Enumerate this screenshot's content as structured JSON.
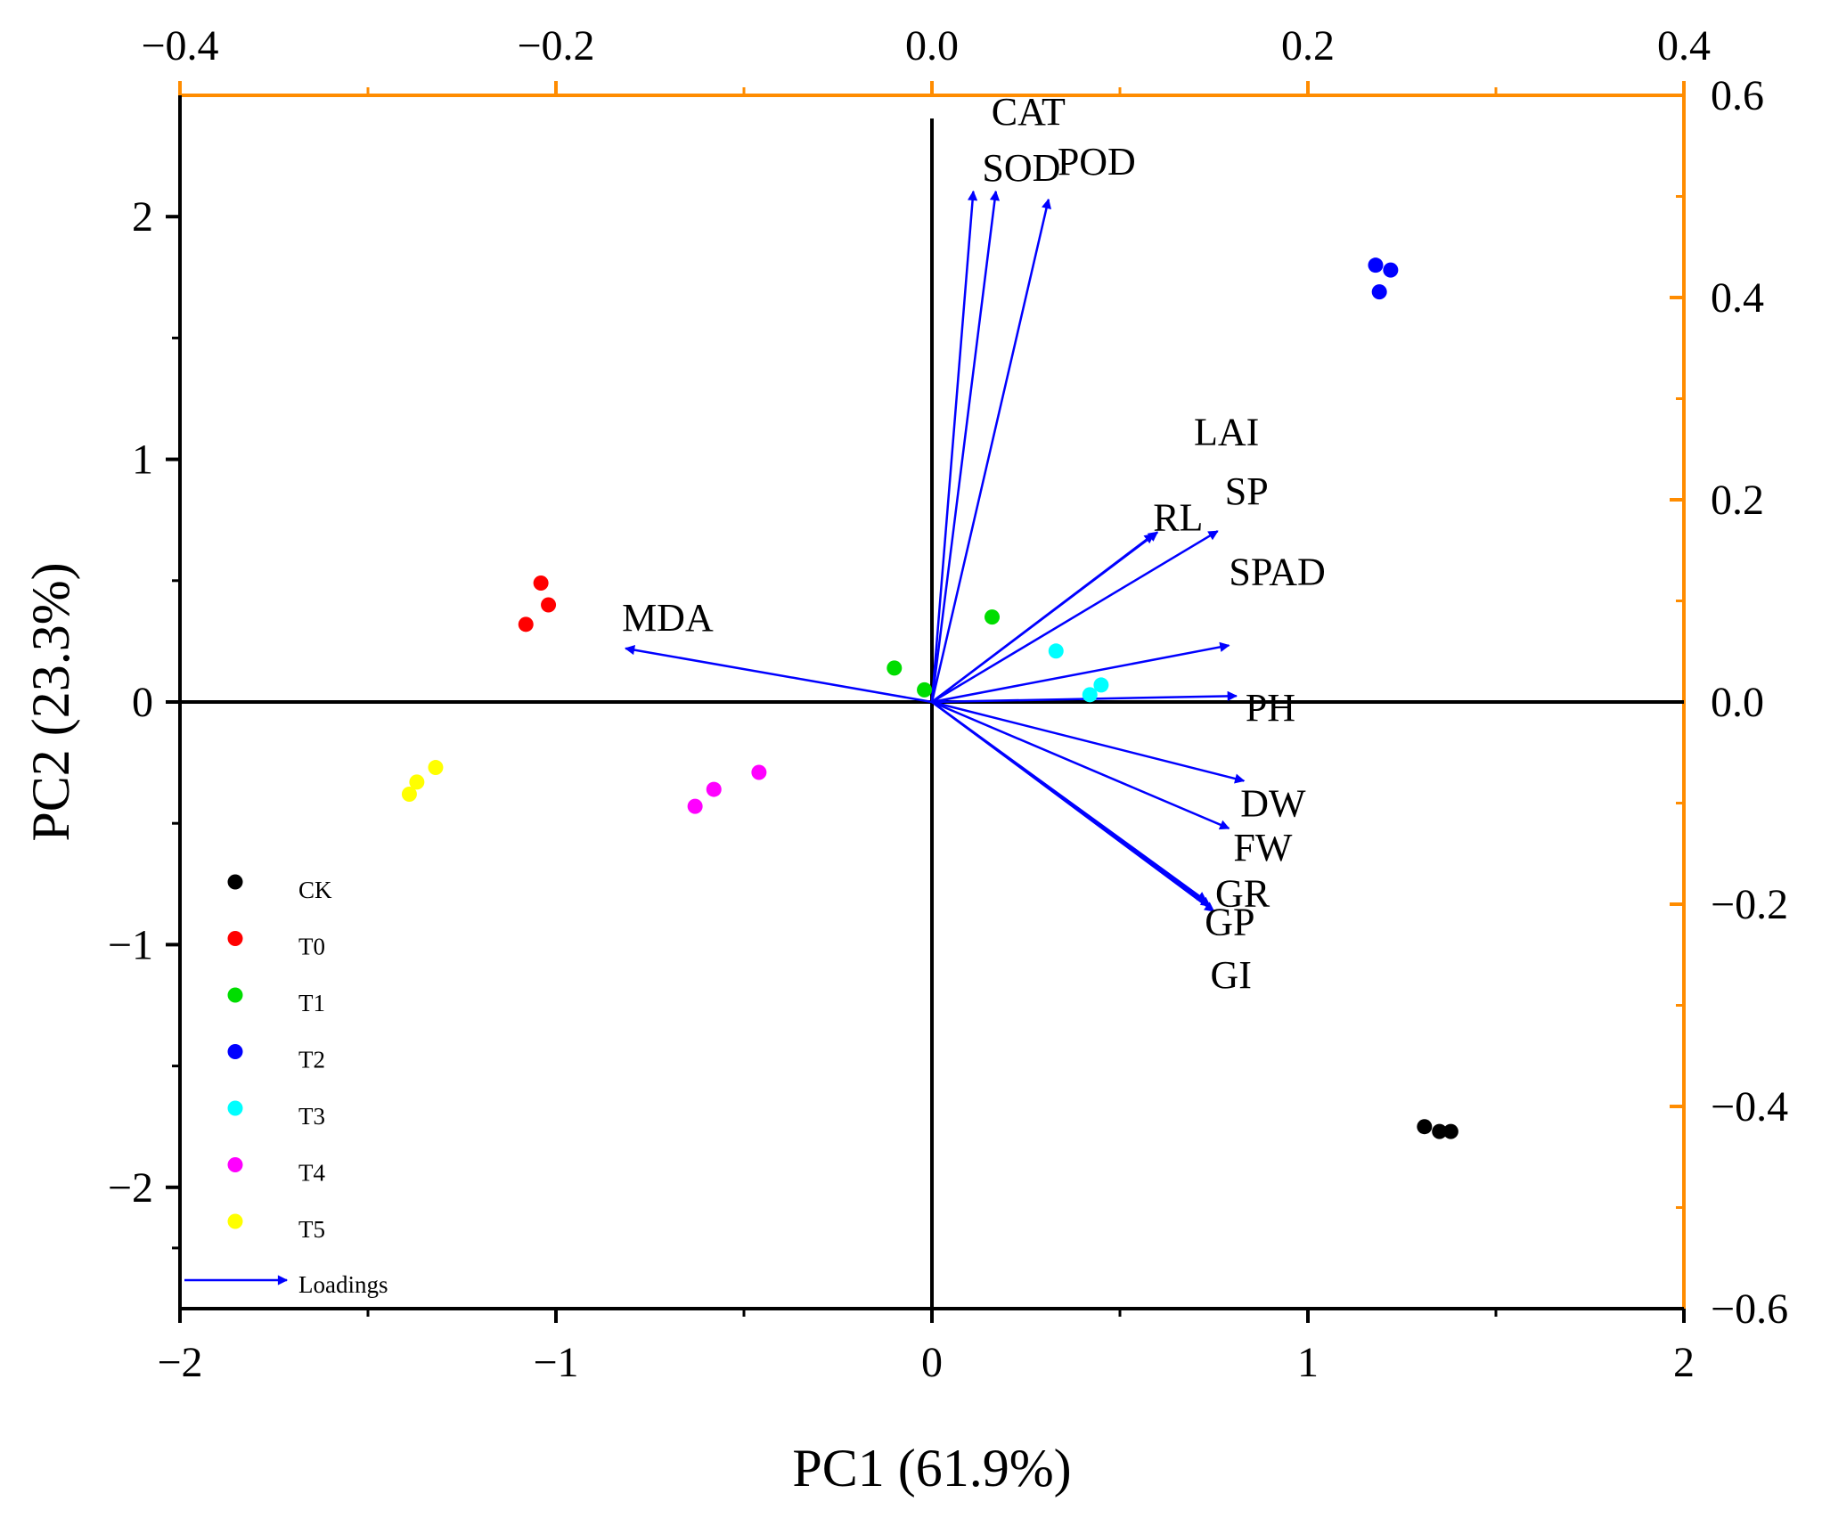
{
  "chart_data": {
    "type": "scatter",
    "subtype": "pca-biplot",
    "xlabel": "PC1 (61.9%)",
    "ylabel": "PC2 (23.3%)",
    "xlim": [
      -2,
      2
    ],
    "ylim": [
      -2.5,
      2.5
    ],
    "x_ticks": [
      "-2",
      "-1",
      "0",
      "1",
      "2"
    ],
    "y_ticks": [
      "-2",
      "-1",
      "0",
      "1",
      "2"
    ],
    "top_axis": {
      "lim": [
        -0.4,
        0.4
      ],
      "ticks": [
        "-0.4",
        "-0.2",
        "0.0",
        "0.2",
        "0.4"
      ],
      "color": "#ff8c00"
    },
    "right_axis": {
      "lim": [
        -0.6,
        0.6
      ],
      "ticks": [
        "-0.6",
        "-0.4",
        "-0.2",
        "0.0",
        "0.2",
        "0.4",
        "0.6"
      ],
      "color": "#ff8c00"
    },
    "groups": [
      {
        "name": "CK",
        "color": "#000000",
        "points": [
          [
            1.31,
            -1.75
          ],
          [
            1.35,
            -1.77
          ],
          [
            1.38,
            -1.77
          ]
        ]
      },
      {
        "name": "T0",
        "color": "#ff0000",
        "points": [
          [
            -1.04,
            0.49
          ],
          [
            -1.02,
            0.4
          ],
          [
            -1.08,
            0.32
          ]
        ]
      },
      {
        "name": "T1",
        "color": "#00dd00",
        "points": [
          [
            -0.1,
            0.14
          ],
          [
            -0.02,
            0.05
          ],
          [
            0.16,
            0.35
          ]
        ]
      },
      {
        "name": "T2",
        "color": "#0000ff",
        "points": [
          [
            1.18,
            1.8
          ],
          [
            1.22,
            1.78
          ],
          [
            1.19,
            1.69
          ]
        ]
      },
      {
        "name": "T3",
        "color": "#00ffff",
        "points": [
          [
            0.33,
            0.21
          ],
          [
            0.42,
            0.03
          ],
          [
            0.45,
            0.07
          ]
        ]
      },
      {
        "name": "T4",
        "color": "#ff00ff",
        "points": [
          [
            -0.63,
            -0.43
          ],
          [
            -0.58,
            -0.36
          ],
          [
            -0.46,
            -0.29
          ]
        ]
      },
      {
        "name": "T5",
        "color": "#ffff00",
        "points": [
          [
            -1.39,
            -0.38
          ],
          [
            -1.37,
            -0.33
          ],
          [
            -1.32,
            -0.27
          ]
        ]
      }
    ],
    "loadings_label": "Loadings",
    "loadings_color": "#0000ff",
    "loadings": [
      {
        "name": "CAT",
        "x": 0.034,
        "y": 0.505
      },
      {
        "name": "SOD",
        "x": 0.022,
        "y": 0.505
      },
      {
        "name": "POD",
        "x": 0.062,
        "y": 0.497
      },
      {
        "name": "LAI",
        "x": 0.118,
        "y": 0.166
      },
      {
        "name": "RL",
        "x": 0.12,
        "y": 0.168
      },
      {
        "name": "SP",
        "x": 0.152,
        "y": 0.169
      },
      {
        "name": "SPAD",
        "x": 0.158,
        "y": 0.056
      },
      {
        "name": "PH",
        "x": 0.162,
        "y": 0.006
      },
      {
        "name": "DW",
        "x": 0.166,
        "y": -0.078
      },
      {
        "name": "FW",
        "x": 0.158,
        "y": -0.125
      },
      {
        "name": "GR",
        "x": 0.146,
        "y": -0.197
      },
      {
        "name": "GP",
        "x": 0.148,
        "y": -0.202
      },
      {
        "name": "GI",
        "x": 0.15,
        "y": -0.207
      },
      {
        "name": "MDA",
        "x": -0.163,
        "y": 0.053
      }
    ]
  }
}
